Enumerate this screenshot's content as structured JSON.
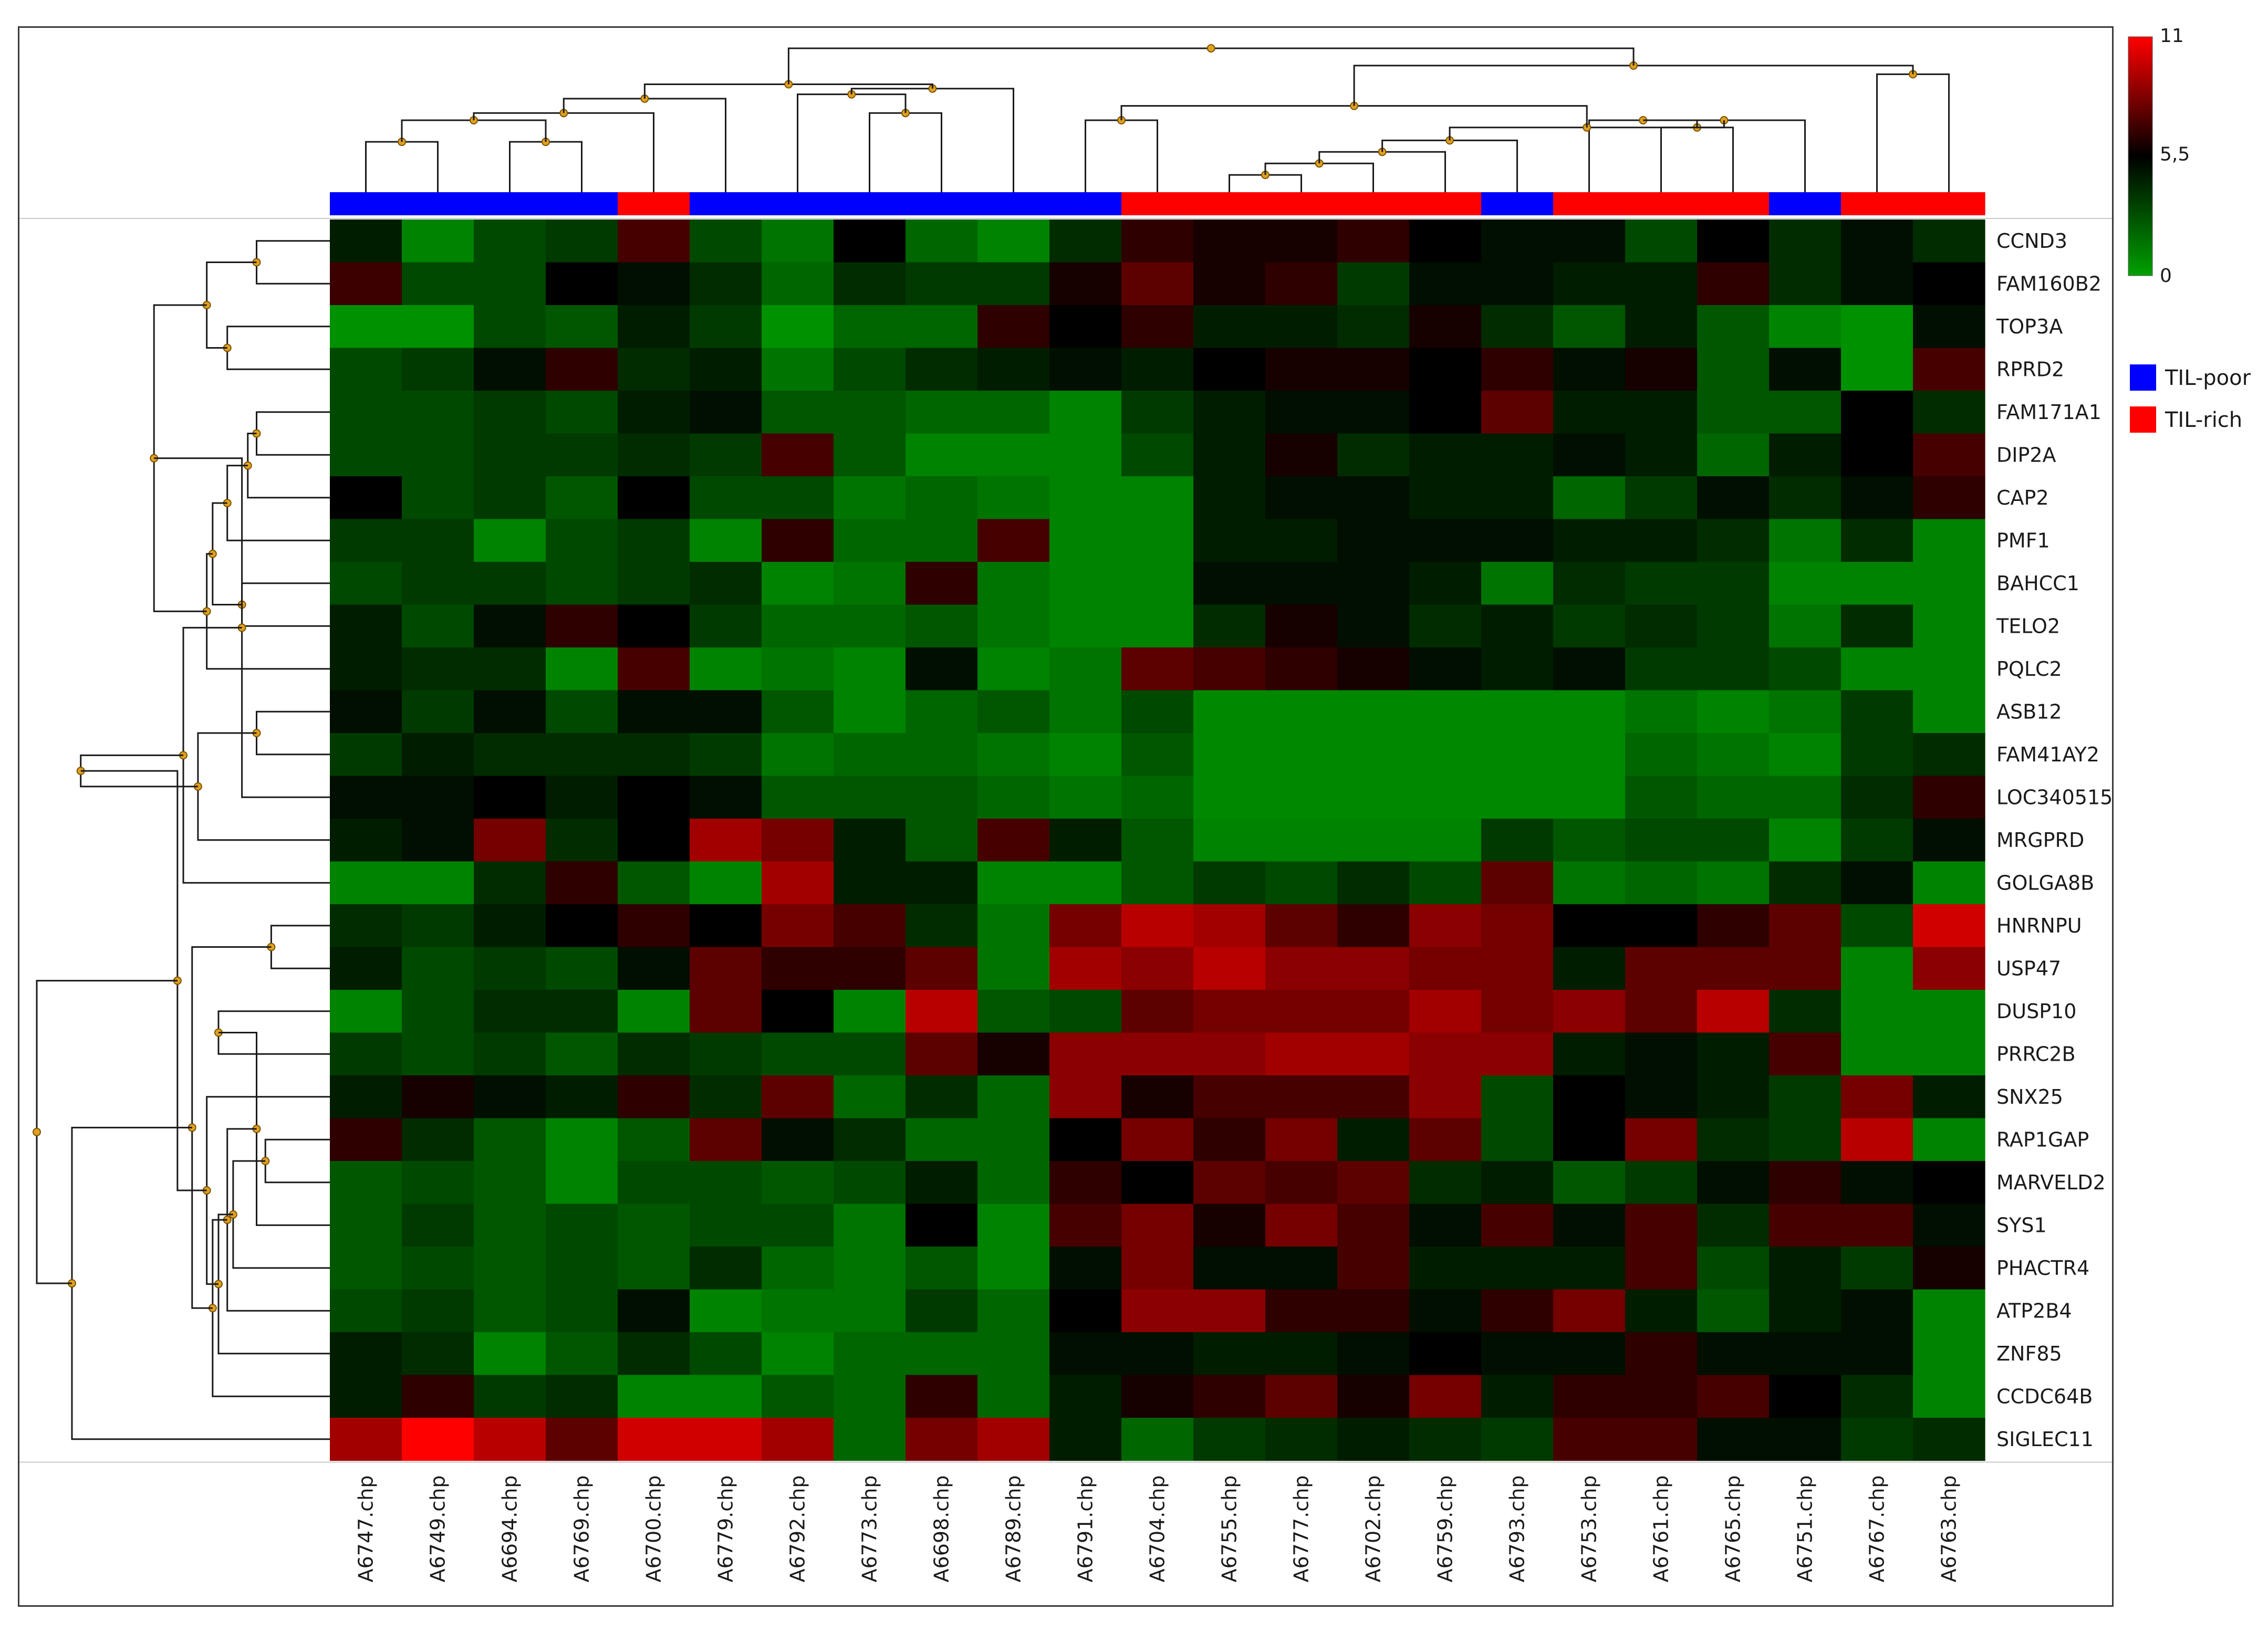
{
  "chart_data": {
    "type": "heatmap",
    "title": "",
    "xlabel": "",
    "ylabel": "",
    "colorscale": {
      "min": 0,
      "mid": 5.5,
      "max": 11,
      "tick_labels": [
        "11",
        "5,5",
        "0"
      ],
      "low_color": "#00a000",
      "mid_color": "#000000",
      "high_color": "#ff0000"
    },
    "legend": {
      "placement": "right",
      "entries": [
        {
          "label": "TIL-poor",
          "color": "#0000ff"
        },
        {
          "label": "TIL-rich",
          "color": "#ff0000"
        }
      ]
    },
    "samples": [
      "A6747.chp",
      "A6749.chp",
      "A6694.chp",
      "A6769.chp",
      "A6700.chp",
      "A6779.chp",
      "A6792.chp",
      "A6773.chp",
      "A6698.chp",
      "A6789.chp",
      "A6791.chp",
      "A6704.chp",
      "A6755.chp",
      "A6777.chp",
      "A6702.chp",
      "A6759.chp",
      "A6793.chp",
      "A6753.chp",
      "A6761.chp",
      "A6765.chp",
      "A6751.chp",
      "A6767.chp",
      "A6763.chp"
    ],
    "sample_groups": [
      "TIL-poor",
      "TIL-poor",
      "TIL-poor",
      "TIL-poor",
      "TIL-rich",
      "TIL-poor",
      "TIL-poor",
      "TIL-poor",
      "TIL-poor",
      "TIL-poor",
      "TIL-poor",
      "TIL-rich",
      "TIL-rich",
      "TIL-rich",
      "TIL-rich",
      "TIL-rich",
      "TIL-poor",
      "TIL-rich",
      "TIL-rich",
      "TIL-rich",
      "TIL-poor",
      "TIL-rich",
      "TIL-rich"
    ],
    "genes": [
      "CCND3",
      "FAM160B2",
      "TOP3A",
      "RPRD2",
      "FAM171A1",
      "DIP2A",
      "CAP2",
      "PMF1",
      "BAHCC1",
      "TELO2",
      "PQLC2",
      "ASB12",
      "FAM41AY2",
      "LOC340515",
      "MRGPRD",
      "GOLGA8B",
      "HNRNPU",
      "USP47",
      "DUSP10",
      "PRRC2B",
      "SNX25",
      "RAP1GAP",
      "MARVELD2",
      "SYS1",
      "PHACTR4",
      "ATP2B4",
      "ZNF85",
      "CCDC64B",
      "SIGLEC11"
    ],
    "values": [
      [
        4.5,
        1.0,
        3.0,
        3.5,
        7.0,
        3.0,
        1.5,
        5.5,
        2.0,
        1.0,
        4.0,
        6.5,
        6.0,
        6.0,
        6.5,
        5.5,
        5.0,
        5.0,
        3.0,
        5.5,
        4.0,
        5.0,
        4.0
      ],
      [
        6.8,
        3.0,
        3.0,
        5.5,
        5.0,
        4.0,
        2.0,
        4.0,
        3.5,
        3.5,
        6.0,
        7.5,
        6.0,
        6.5,
        3.5,
        5.0,
        5.0,
        4.5,
        4.5,
        6.5,
        4.0,
        5.0,
        5.5
      ],
      [
        0.5,
        0.5,
        3.0,
        2.5,
        4.5,
        3.5,
        0.5,
        2.0,
        2.0,
        6.5,
        5.5,
        6.5,
        4.5,
        4.5,
        4.0,
        6.0,
        4.0,
        2.5,
        4.5,
        2.5,
        1.0,
        0.5,
        5.0
      ],
      [
        3.0,
        3.5,
        5.0,
        6.5,
        4.0,
        4.5,
        1.5,
        3.0,
        4.0,
        4.5,
        5.0,
        4.5,
        5.5,
        6.0,
        6.0,
        5.5,
        6.5,
        5.0,
        6.0,
        2.5,
        5.0,
        0.5,
        7.0
      ],
      [
        3.0,
        3.0,
        3.5,
        3.0,
        4.5,
        5.0,
        2.5,
        2.5,
        2.0,
        2.0,
        1.0,
        3.5,
        4.5,
        5.0,
        5.0,
        5.5,
        7.5,
        4.5,
        4.5,
        2.5,
        2.5,
        5.5,
        4.0
      ],
      [
        3.0,
        3.0,
        3.5,
        3.5,
        4.0,
        3.5,
        7.0,
        2.5,
        1.0,
        1.0,
        1.0,
        3.0,
        4.5,
        6.0,
        4.0,
        4.5,
        4.5,
        5.0,
        4.5,
        2.0,
        4.5,
        5.5,
        7.0
      ],
      [
        5.5,
        3.0,
        3.5,
        2.5,
        5.5,
        3.0,
        3.0,
        1.5,
        2.0,
        1.5,
        1.0,
        1.0,
        4.5,
        5.0,
        5.0,
        4.5,
        4.5,
        2.0,
        3.5,
        5.0,
        4.0,
        5.0,
        6.5
      ],
      [
        3.5,
        3.5,
        1.0,
        3.0,
        3.5,
        1.0,
        6.5,
        2.0,
        2.0,
        7.0,
        1.0,
        1.0,
        4.5,
        4.5,
        5.0,
        5.0,
        5.0,
        4.5,
        4.5,
        4.0,
        1.5,
        4.0,
        1.0
      ],
      [
        3.0,
        3.5,
        3.5,
        3.0,
        3.5,
        4.0,
        1.0,
        1.5,
        6.5,
        1.5,
        1.0,
        1.0,
        5.0,
        5.0,
        5.0,
        4.5,
        1.5,
        4.0,
        3.5,
        3.5,
        1.0,
        1.0,
        1.0
      ],
      [
        4.5,
        3.0,
        5.0,
        6.5,
        5.5,
        3.5,
        2.0,
        2.0,
        2.5,
        1.5,
        1.0,
        1.0,
        4.0,
        6.0,
        5.0,
        4.0,
        4.5,
        3.5,
        4.0,
        3.5,
        1.5,
        4.0,
        1.0
      ],
      [
        4.5,
        4.0,
        4.0,
        1.0,
        7.0,
        1.0,
        1.5,
        1.0,
        5.0,
        1.0,
        1.5,
        7.5,
        7.0,
        6.5,
        6.0,
        5.0,
        4.5,
        5.0,
        3.5,
        3.5,
        3.0,
        1.0,
        1.0
      ],
      [
        5.0,
        3.5,
        5.0,
        3.0,
        5.0,
        5.0,
        2.5,
        1.0,
        2.0,
        2.5,
        1.5,
        3.0,
        0.8,
        0.8,
        0.8,
        0.8,
        0.8,
        0.8,
        1.5,
        1.0,
        1.5,
        3.5,
        1.0
      ],
      [
        3.5,
        4.5,
        4.0,
        4.0,
        4.0,
        3.5,
        1.5,
        2.0,
        2.0,
        1.5,
        1.0,
        2.5,
        0.8,
        0.8,
        0.8,
        0.8,
        0.8,
        0.8,
        2.0,
        1.5,
        1.0,
        3.5,
        4.0
      ],
      [
        5.0,
        5.0,
        5.5,
        4.5,
        5.5,
        5.0,
        2.5,
        2.5,
        2.5,
        2.0,
        1.5,
        2.0,
        0.8,
        0.8,
        0.8,
        0.8,
        0.8,
        0.8,
        2.5,
        2.0,
        2.0,
        4.0,
        6.5
      ],
      [
        4.5,
        5.0,
        8.0,
        4.0,
        5.5,
        9.0,
        8.0,
        4.5,
        2.5,
        7.0,
        4.5,
        2.5,
        1.0,
        1.0,
        1.0,
        1.0,
        3.5,
        2.5,
        3.0,
        3.0,
        1.0,
        3.5,
        5.0
      ],
      [
        1.0,
        1.0,
        4.0,
        6.5,
        2.5,
        1.0,
        9.0,
        4.5,
        4.5,
        1.0,
        1.0,
        2.5,
        3.5,
        3.0,
        4.0,
        3.0,
        7.5,
        1.5,
        2.0,
        1.5,
        4.0,
        5.0,
        1.0
      ],
      [
        4.0,
        3.5,
        4.5,
        5.5,
        6.5,
        5.5,
        8.0,
        7.0,
        4.0,
        1.5,
        8.0,
        9.5,
        9.0,
        7.5,
        6.5,
        8.5,
        8.0,
        5.5,
        5.5,
        6.5,
        7.5,
        3.0,
        10.0
      ],
      [
        4.5,
        3.0,
        3.5,
        3.0,
        5.0,
        7.5,
        6.5,
        6.5,
        7.5,
        1.5,
        9.0,
        8.5,
        9.5,
        8.5,
        8.5,
        8.0,
        8.0,
        4.5,
        7.5,
        7.5,
        7.5,
        1.0,
        8.5
      ],
      [
        1.0,
        3.0,
        4.0,
        4.0,
        1.0,
        7.5,
        5.5,
        1.0,
        9.5,
        2.5,
        3.0,
        7.5,
        8.0,
        8.0,
        8.0,
        9.0,
        8.0,
        8.5,
        7.5,
        9.5,
        4.0,
        1.0,
        1.0
      ],
      [
        3.5,
        3.0,
        3.5,
        2.5,
        4.0,
        3.5,
        3.0,
        3.0,
        7.5,
        6.0,
        8.5,
        8.5,
        8.5,
        9.0,
        9.0,
        8.5,
        8.5,
        4.5,
        5.0,
        4.5,
        7.0,
        1.0,
        1.0
      ],
      [
        4.5,
        6.0,
        5.0,
        4.5,
        6.5,
        4.0,
        7.5,
        2.0,
        4.0,
        2.0,
        8.5,
        6.0,
        7.0,
        7.0,
        7.0,
        8.5,
        3.0,
        5.5,
        5.0,
        4.5,
        3.5,
        8.0,
        4.5
      ],
      [
        6.5,
        4.0,
        2.5,
        1.0,
        2.5,
        7.5,
        5.0,
        4.0,
        2.0,
        2.0,
        5.5,
        8.0,
        6.5,
        8.0,
        4.5,
        7.5,
        3.0,
        5.5,
        8.0,
        4.0,
        3.5,
        9.5,
        1.0
      ],
      [
        2.5,
        3.0,
        2.5,
        1.0,
        3.0,
        3.0,
        2.5,
        3.0,
        4.5,
        2.0,
        6.5,
        5.5,
        7.5,
        7.0,
        7.5,
        4.0,
        4.5,
        2.5,
        3.5,
        5.0,
        6.5,
        5.0,
        5.5
      ],
      [
        2.5,
        3.5,
        2.5,
        3.0,
        2.5,
        3.0,
        3.0,
        1.5,
        5.5,
        1.0,
        7.0,
        8.0,
        6.0,
        8.0,
        7.0,
        5.0,
        7.0,
        5.0,
        7.0,
        4.0,
        7.0,
        7.0,
        5.0
      ],
      [
        2.5,
        3.0,
        2.5,
        3.0,
        2.5,
        4.0,
        2.0,
        1.5,
        2.5,
        1.0,
        5.0,
        8.0,
        5.0,
        5.0,
        7.0,
        4.5,
        4.5,
        4.5,
        7.0,
        3.0,
        4.5,
        3.5,
        6.0
      ],
      [
        3.0,
        3.5,
        2.5,
        3.0,
        5.0,
        1.0,
        1.5,
        1.5,
        3.5,
        2.0,
        5.5,
        8.5,
        8.5,
        6.5,
        6.5,
        5.0,
        6.5,
        8.0,
        4.5,
        2.5,
        4.5,
        5.0,
        1.0
      ],
      [
        4.5,
        4.0,
        1.0,
        2.5,
        4.0,
        3.0,
        1.0,
        2.0,
        2.0,
        2.0,
        5.0,
        5.0,
        4.5,
        4.5,
        5.0,
        5.5,
        5.0,
        5.0,
        6.5,
        5.0,
        5.0,
        5.0,
        1.0
      ],
      [
        4.5,
        6.5,
        3.5,
        4.0,
        1.0,
        1.0,
        2.5,
        2.0,
        6.5,
        2.0,
        4.5,
        6.0,
        6.5,
        7.5,
        6.0,
        8.0,
        4.5,
        6.5,
        6.5,
        7.0,
        5.5,
        4.0,
        1.0
      ],
      [
        9.0,
        11.0,
        9.5,
        7.5,
        10.0,
        10.0,
        9.0,
        2.0,
        8.0,
        9.0,
        4.5,
        2.0,
        3.5,
        4.0,
        4.5,
        4.0,
        3.5,
        7.0,
        7.0,
        5.0,
        5.0,
        3.5,
        4.0
      ]
    ],
    "col_dendrogram": {
      "leaf_order": [
        0,
        1,
        2,
        3,
        4,
        5,
        6,
        7,
        8,
        9,
        10,
        11,
        12,
        13,
        14,
        15,
        16,
        17,
        18,
        19,
        20,
        21,
        22
      ],
      "merges": [
        [
          0,
          1,
          0.35
        ],
        [
          2,
          3,
          0.35
        ],
        [
          23,
          24,
          0.5
        ],
        [
          25,
          4,
          0.55
        ],
        [
          26,
          5,
          0.65
        ],
        [
          7,
          8,
          0.55
        ],
        [
          6,
          28,
          0.68
        ],
        [
          29,
          9,
          0.72
        ],
        [
          27,
          30,
          0.75
        ],
        [
          12,
          13,
          0.12
        ],
        [
          32,
          14,
          0.2
        ],
        [
          33,
          15,
          0.28
        ],
        [
          34,
          16,
          0.36
        ],
        [
          18,
          19,
          0.45
        ],
        [
          17,
          36,
          0.5
        ],
        [
          37,
          20,
          0.5
        ],
        [
          35,
          38,
          0.45
        ],
        [
          10,
          11,
          0.5
        ],
        [
          40,
          39,
          0.6
        ],
        [
          21,
          22,
          0.82
        ],
        [
          41,
          42,
          0.88
        ],
        [
          31,
          43,
          1.0
        ]
      ]
    },
    "row_dendrogram": {
      "leaf_order": [
        0,
        1,
        2,
        3,
        4,
        5,
        6,
        7,
        8,
        9,
        10,
        11,
        12,
        13,
        14,
        15,
        16,
        17,
        18,
        19,
        20,
        21,
        22,
        23,
        24,
        25,
        26,
        27,
        28
      ],
      "merges": [
        [
          0,
          1,
          0.25
        ],
        [
          2,
          3,
          0.35
        ],
        [
          29,
          30,
          0.42
        ],
        [
          4,
          5,
          0.25
        ],
        [
          32,
          6,
          0.28
        ],
        [
          8,
          9,
          0.3
        ],
        [
          33,
          7,
          0.35
        ],
        [
          35,
          34,
          0.4
        ],
        [
          36,
          10,
          0.42
        ],
        [
          31,
          37,
          0.6
        ],
        [
          11,
          12,
          0.25
        ],
        [
          38,
          13,
          0.3
        ],
        [
          39,
          14,
          0.45
        ],
        [
          40,
          15,
          0.5
        ],
        [
          41,
          42,
          0.85
        ],
        [
          16,
          17,
          0.2
        ],
        [
          18,
          19,
          0.38
        ],
        [
          21,
          22,
          0.22
        ],
        [
          45,
          23,
          0.25
        ],
        [
          46,
          24,
          0.33
        ],
        [
          47,
          25,
          0.35
        ],
        [
          48,
          26,
          0.38
        ],
        [
          49,
          27,
          0.4
        ],
        [
          20,
          50,
          0.42
        ],
        [
          44,
          51,
          0.47
        ],
        [
          43,
          52,
          0.52
        ],
        [
          53,
          28,
          0.88
        ],
        [
          54,
          55,
          1.0
        ]
      ]
    }
  }
}
